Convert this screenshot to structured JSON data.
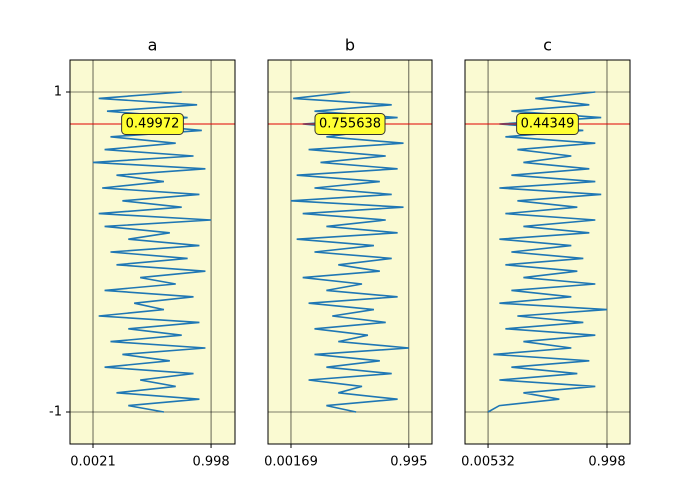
{
  "chart_data": [
    {
      "type": "line",
      "title": "a",
      "annotation": "0.49972",
      "hline": 0.8,
      "xlim": [
        -0.192,
        1.2
      ],
      "xticks": [
        0.0021,
        0.998
      ],
      "ylim": [
        -1.2,
        1.2
      ],
      "yticks": [
        1,
        -1
      ],
      "grid": true,
      "color": "#1f77b4",
      "background": "#fafad2",
      "y": [
        1,
        0.96,
        0.92,
        0.88,
        0.84,
        0.8,
        0.76,
        0.72,
        0.68,
        0.64,
        0.6,
        0.56,
        0.52,
        0.48,
        0.44,
        0.4,
        0.36,
        0.32,
        0.28,
        0.24,
        0.2,
        0.16,
        0.12,
        0.08,
        0.04,
        0,
        -0.04,
        -0.08,
        -0.12,
        -0.16,
        -0.2,
        -0.24,
        -0.28,
        -0.32,
        -0.36,
        -0.4,
        -0.44,
        -0.48,
        -0.52,
        -0.56,
        -0.6,
        -0.64,
        -0.68,
        -0.72,
        -0.76,
        -0.8,
        -0.84,
        -0.88,
        -0.92,
        -0.96,
        -1
      ],
      "x": [
        0.75,
        0.05,
        0.88,
        0.12,
        0.8,
        0.3,
        0.92,
        0.15,
        0.7,
        0.1,
        0.85,
        0.0021,
        0.95,
        0.2,
        0.6,
        0.08,
        0.9,
        0.25,
        0.75,
        0.05,
        0.998,
        0.1,
        0.65,
        0.3,
        0.9,
        0.15,
        0.8,
        0.2,
        0.95,
        0.4,
        0.7,
        0.1,
        0.85,
        0.35,
        0.6,
        0.05,
        0.9,
        0.3,
        0.75,
        0.15,
        0.95,
        0.25,
        0.65,
        0.1,
        0.85,
        0.4,
        0.7,
        0.2,
        0.9,
        0.3,
        0.6
      ]
    },
    {
      "type": "line",
      "title": "b",
      "annotation": "0.755638",
      "hline": 0.8,
      "xlim": [
        -0.192,
        1.19
      ],
      "xticks": [
        0.00169,
        0.995
      ],
      "grid": true,
      "color": "#1f77b4",
      "background": "#fafad2",
      "y": [
        1,
        0.96,
        0.92,
        0.88,
        0.84,
        0.8,
        0.76,
        0.72,
        0.68,
        0.64,
        0.6,
        0.56,
        0.52,
        0.48,
        0.44,
        0.4,
        0.36,
        0.32,
        0.28,
        0.24,
        0.2,
        0.16,
        0.12,
        0.08,
        0.04,
        0,
        -0.04,
        -0.08,
        -0.12,
        -0.16,
        -0.2,
        -0.24,
        -0.28,
        -0.32,
        -0.36,
        -0.4,
        -0.44,
        -0.48,
        -0.52,
        -0.56,
        -0.6,
        -0.64,
        -0.68,
        -0.72,
        -0.76,
        -0.8,
        -0.84,
        -0.88,
        -0.92,
        -0.96,
        -1
      ],
      "x": [
        0.5,
        0.02,
        0.85,
        0.2,
        0.9,
        0.1,
        0.7,
        0.3,
        0.95,
        0.15,
        0.8,
        0.25,
        0.9,
        0.05,
        0.75,
        0.2,
        0.85,
        0.00169,
        0.95,
        0.1,
        0.8,
        0.3,
        0.9,
        0.05,
        0.7,
        0.2,
        0.85,
        0.4,
        0.75,
        0.1,
        0.6,
        0.3,
        0.9,
        0.15,
        0.7,
        0.35,
        0.8,
        0.2,
        0.65,
        0.4,
        0.995,
        0.2,
        0.75,
        0.3,
        0.85,
        0.15,
        0.6,
        0.4,
        0.9,
        0.3,
        0.55
      ]
    },
    {
      "type": "line",
      "title": "c",
      "annotation": "0.44349",
      "hline": 0.8,
      "xlim": [
        -0.187,
        1.19
      ],
      "xticks": [
        0.00532,
        0.998
      ],
      "grid": true,
      "color": "#1f77b4",
      "background": "#fafad2",
      "y": [
        1,
        0.96,
        0.92,
        0.88,
        0.84,
        0.8,
        0.76,
        0.72,
        0.68,
        0.64,
        0.6,
        0.56,
        0.52,
        0.48,
        0.44,
        0.4,
        0.36,
        0.32,
        0.28,
        0.24,
        0.2,
        0.16,
        0.12,
        0.08,
        0.04,
        0,
        -0.04,
        -0.08,
        -0.12,
        -0.16,
        -0.2,
        -0.24,
        -0.28,
        -0.32,
        -0.36,
        -0.4,
        -0.44,
        -0.48,
        -0.52,
        -0.56,
        -0.6,
        -0.64,
        -0.68,
        -0.72,
        -0.76,
        -0.8,
        -0.84,
        -0.88,
        -0.92,
        -0.96,
        -1
      ],
      "x": [
        0.9,
        0.4,
        0.85,
        0.2,
        0.95,
        0.1,
        0.8,
        0.15,
        0.9,
        0.25,
        0.7,
        0.3,
        0.85,
        0.2,
        0.9,
        0.1,
        0.95,
        0.25,
        0.75,
        0.15,
        0.9,
        0.3,
        0.85,
        0.1,
        0.7,
        0.2,
        0.8,
        0.15,
        0.75,
        0.3,
        0.9,
        0.2,
        0.7,
        0.1,
        0.998,
        0.25,
        0.8,
        0.15,
        0.9,
        0.3,
        0.7,
        0.05,
        0.85,
        0.2,
        0.75,
        0.1,
        0.9,
        0.3,
        0.6,
        0.1,
        0.00532
      ]
    }
  ]
}
